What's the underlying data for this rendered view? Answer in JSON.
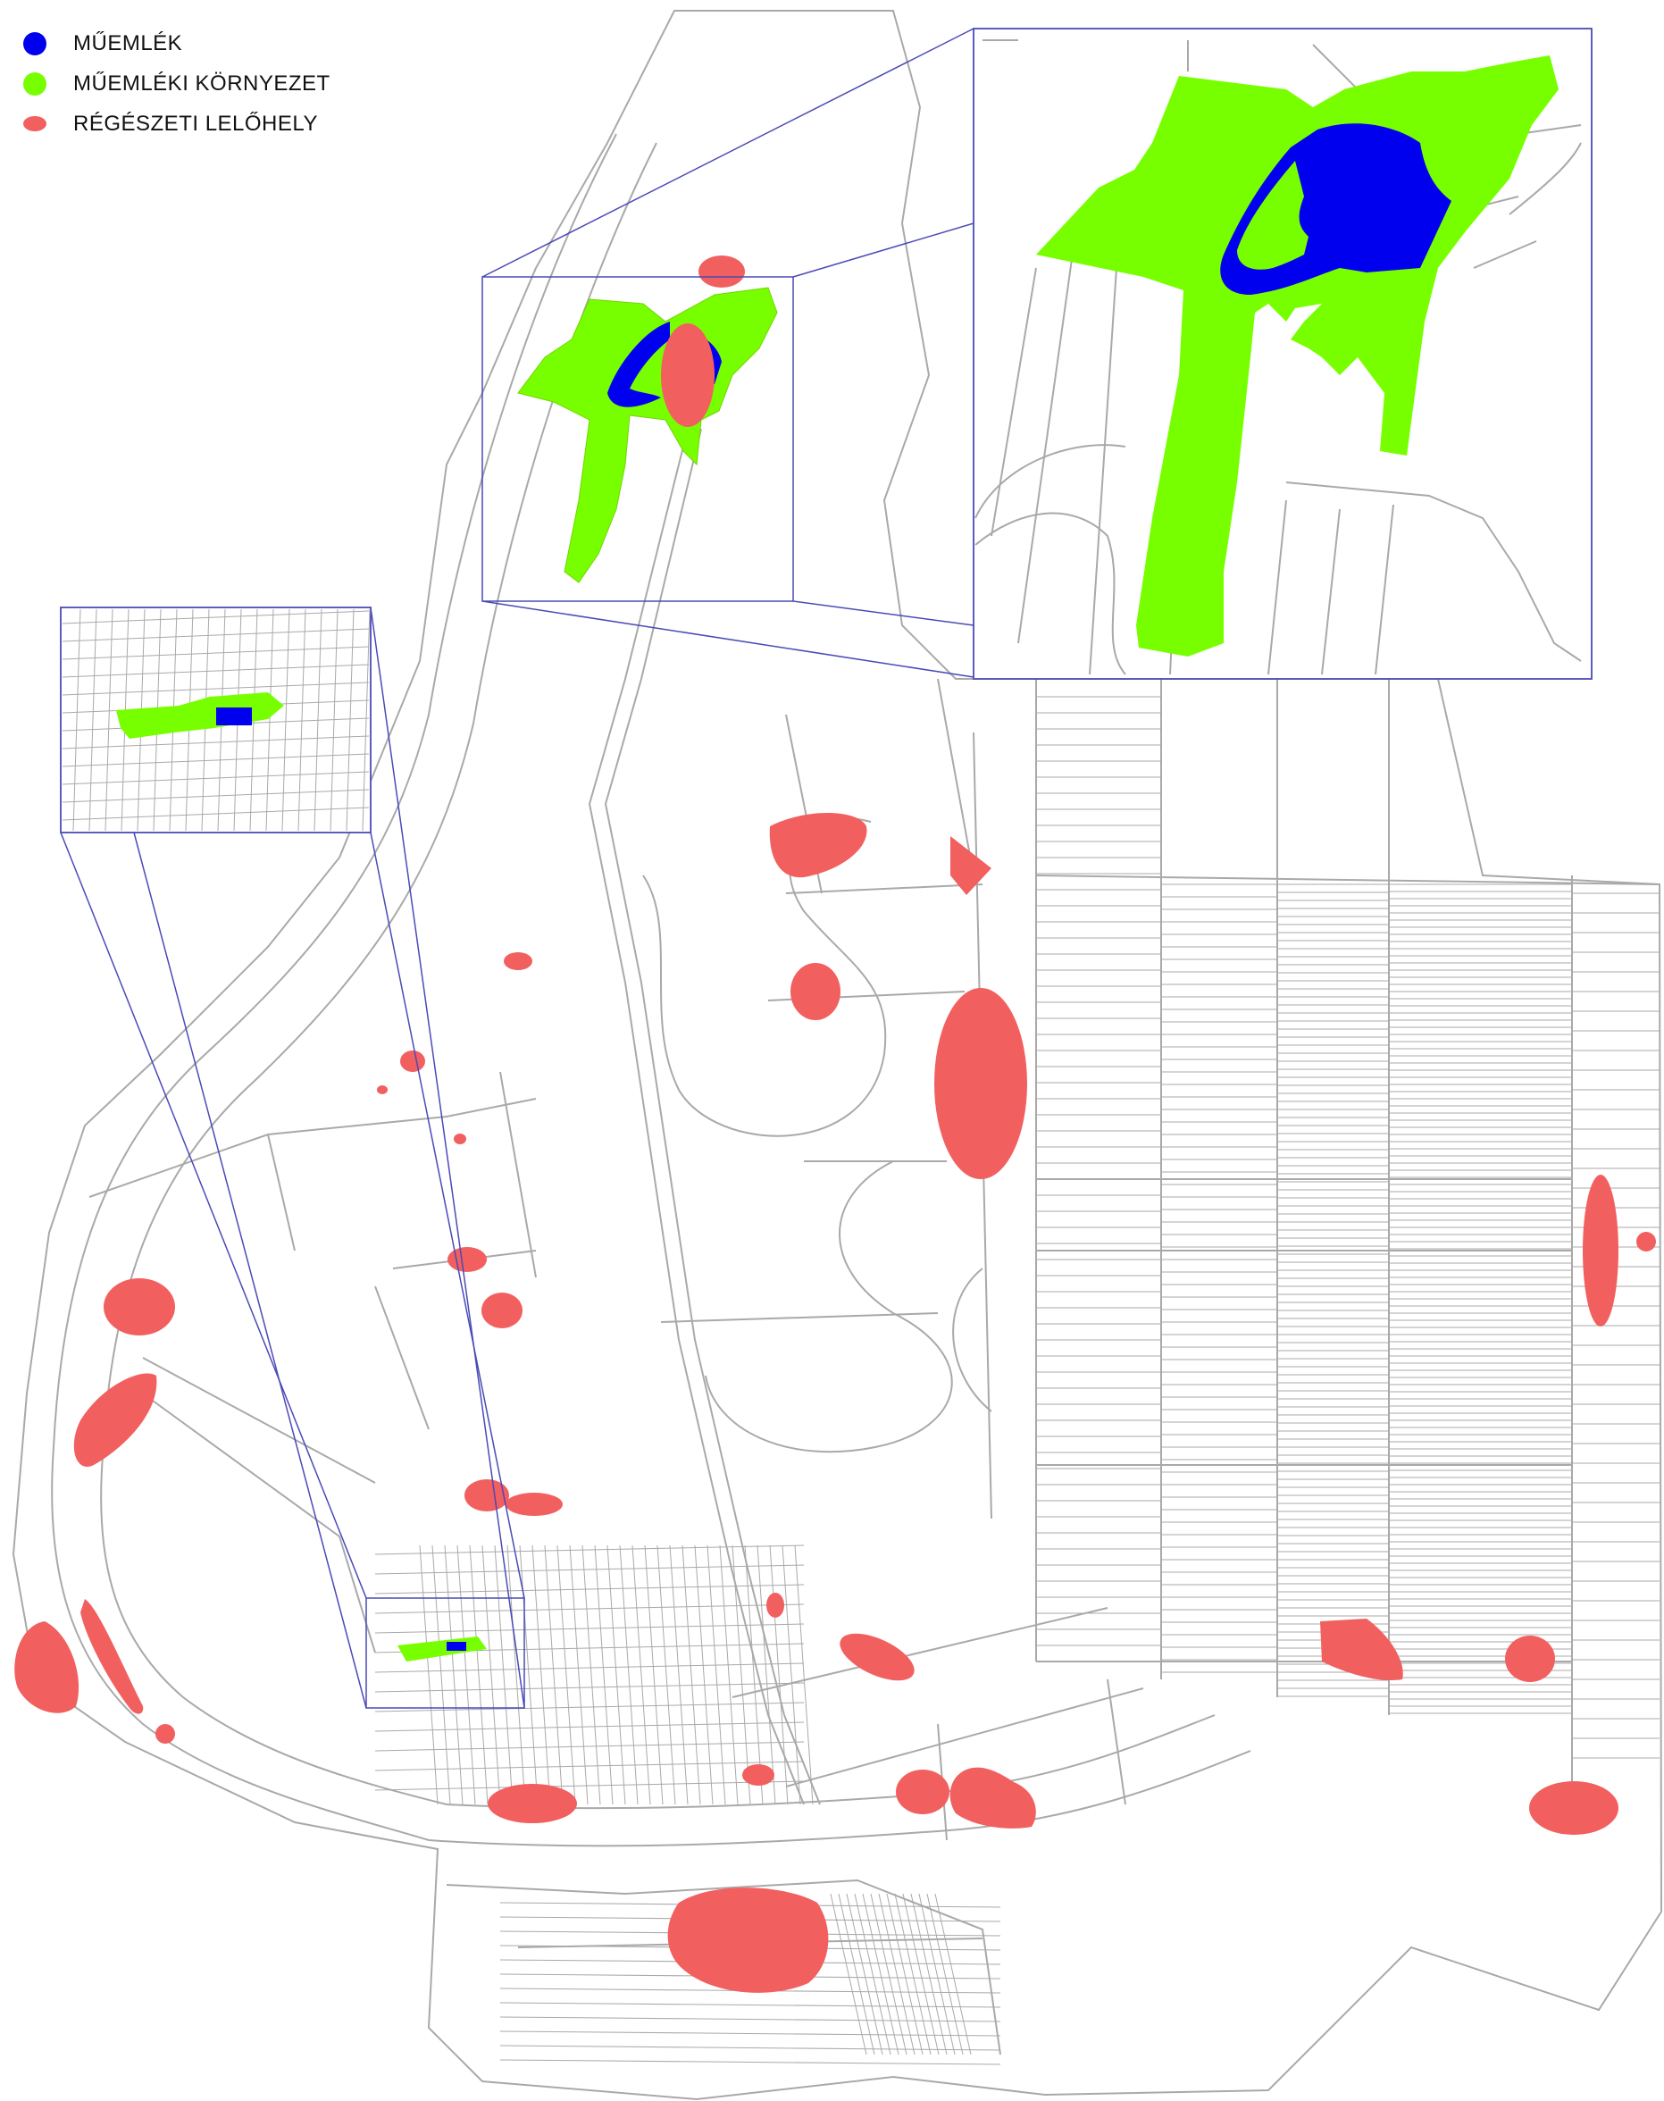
{
  "legend": {
    "items": [
      {
        "label": "MŰEMLÉK",
        "color": "#0000ee",
        "icon": "blue-dot-icon"
      },
      {
        "label": "MŰEMLÉKI KÖRNYEZET",
        "color": "#77ff00",
        "icon": "green-dot-icon"
      },
      {
        "label": "RÉGÉSZETI LELŐHELY",
        "color": "#f25f5f",
        "icon": "red-blob-icon"
      }
    ]
  },
  "colors": {
    "monument": "#0000ee",
    "monument_environment": "#77ff00",
    "archaeological_site": "#f25f5f",
    "parcel_lines": "#a9a9a9",
    "inset_frames": "#4a4ab8"
  }
}
